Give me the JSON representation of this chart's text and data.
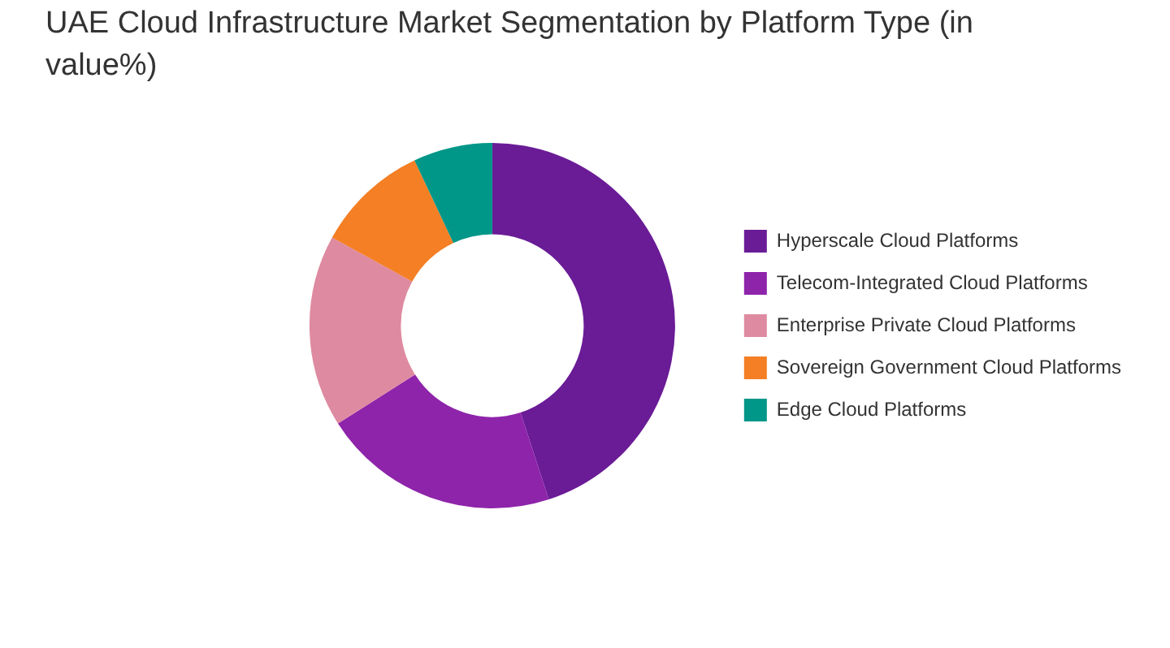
{
  "chart_data": {
    "type": "donut",
    "title": "UAE Cloud Infrastructure Market Segmentation by Platform Type (in value%)",
    "categories": [
      "Hyperscale Cloud Platforms",
      "Telecom-Integrated Cloud Platforms",
      "Enterprise Private Cloud Platforms",
      "Sovereign Government Cloud Platforms",
      "Edge Cloud Platforms"
    ],
    "values": [
      45,
      21,
      17,
      10,
      7
    ],
    "colors": [
      "#6a1b96",
      "#8e24aa",
      "#de8aa0",
      "#f47f24",
      "#009688"
    ],
    "legend": "right"
  }
}
